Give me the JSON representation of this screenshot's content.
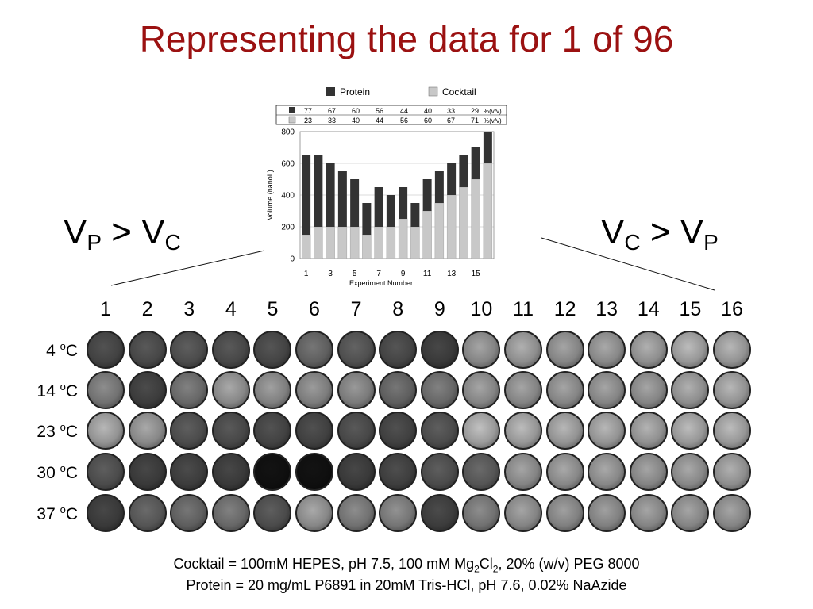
{
  "slide": {
    "title": "Representing the data for 1 of 96",
    "left_ratio": {
      "main": "V",
      "sub1": "P",
      "mid": " > V",
      "sub2": "C"
    },
    "right_ratio": {
      "main": "V",
      "sub1": "C",
      "mid": " > V",
      "sub2": "P"
    }
  },
  "colors": {
    "title": "#9b1111",
    "protein": "#333333",
    "cocktail": "#c8c8c8"
  },
  "chart_data": {
    "type": "bar",
    "stacked": true,
    "legend": [
      "Protein",
      "Cocktail"
    ],
    "legend_position": "top",
    "table": {
      "protein_row": [
        "77",
        "67",
        "60",
        "56",
        "44",
        "40",
        "33",
        "29"
      ],
      "cocktail_row": [
        "23",
        "33",
        "40",
        "44",
        "56",
        "60",
        "67",
        "71"
      ],
      "unit": "%(v/v)"
    },
    "x": [
      1,
      2,
      3,
      4,
      5,
      6,
      7,
      8,
      9,
      10,
      11,
      12,
      13,
      14,
      15,
      16
    ],
    "x_tick_labels": [
      "1",
      "3",
      "5",
      "7",
      "9",
      "11",
      "13",
      "15"
    ],
    "xlabel": "Experiment Number",
    "ylabel": "Volume (nanoL)",
    "ylim": [
      0,
      800
    ],
    "y_ticks": [
      "0",
      "200",
      "400",
      "600",
      "800"
    ],
    "series": [
      {
        "name": "Cocktail",
        "values": [
          150,
          200,
          200,
          200,
          200,
          150,
          200,
          200,
          250,
          200,
          300,
          350,
          400,
          450,
          500,
          600
        ]
      },
      {
        "name": "Protein",
        "values": [
          500,
          450,
          400,
          350,
          300,
          200,
          250,
          200,
          200,
          150,
          200,
          200,
          200,
          200,
          200,
          200
        ]
      }
    ]
  },
  "plate": {
    "columns": [
      "1",
      "2",
      "3",
      "4",
      "5",
      "6",
      "7",
      "8",
      "9",
      "10",
      "11",
      "12",
      "13",
      "14",
      "15",
      "16"
    ],
    "rows": [
      {
        "temp": "4 ",
        "unit_sup": "o",
        "unit": "C",
        "shades": [
          0.35,
          0.38,
          0.4,
          0.38,
          0.36,
          0.5,
          0.42,
          0.36,
          0.3,
          0.7,
          0.75,
          0.7,
          0.72,
          0.75,
          0.8,
          0.78
        ]
      },
      {
        "temp": "14 ",
        "unit_sup": "o",
        "unit": "C",
        "shades": [
          0.6,
          0.32,
          0.55,
          0.72,
          0.68,
          0.66,
          0.65,
          0.5,
          0.55,
          0.7,
          0.7,
          0.7,
          0.7,
          0.7,
          0.75,
          0.78
        ]
      },
      {
        "temp": "23 ",
        "unit_sup": "o",
        "unit": "C",
        "shades": [
          0.78,
          0.72,
          0.4,
          0.38,
          0.35,
          0.34,
          0.38,
          0.34,
          0.4,
          0.82,
          0.8,
          0.78,
          0.78,
          0.76,
          0.8,
          0.8
        ]
      },
      {
        "temp": "30 ",
        "unit_sup": "o",
        "unit": "C",
        "shades": [
          0.4,
          0.3,
          0.32,
          0.3,
          0.08,
          0.08,
          0.3,
          0.33,
          0.4,
          0.45,
          0.7,
          0.72,
          0.72,
          0.7,
          0.72,
          0.75
        ]
      },
      {
        "temp": "37 ",
        "unit_sup": "o",
        "unit": "C",
        "shades": [
          0.3,
          0.45,
          0.5,
          0.55,
          0.4,
          0.72,
          0.6,
          0.62,
          0.32,
          0.6,
          0.7,
          0.68,
          0.68,
          0.7,
          0.7,
          0.7
        ]
      }
    ]
  },
  "caption": {
    "line1_a": "Cocktail = 100mM HEPES, pH 7.5, 100 mM Mg",
    "line1_sub1": "2",
    "line1_b": "Cl",
    "line1_sub2": "2",
    "line1_c": ", 20% (w/v) PEG 8000",
    "line2": "Protein = 20 mg/mL P6891 in 20mM Tris-HCl, pH 7.6, 0.02% NaAzide"
  }
}
